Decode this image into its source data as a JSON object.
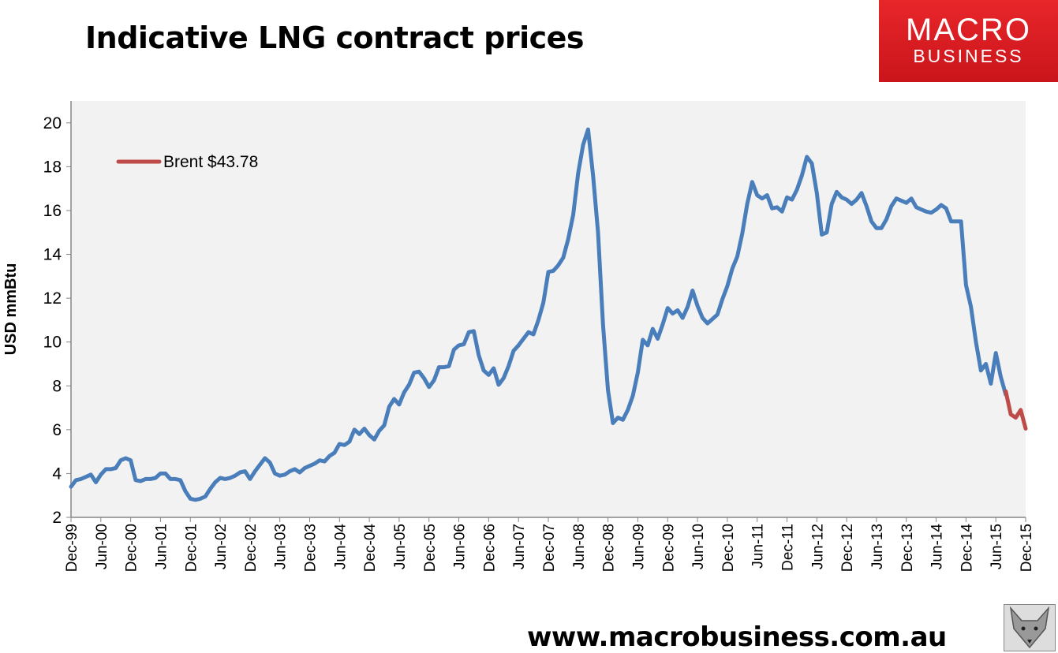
{
  "header": {
    "title": "Indicative LNG contract prices"
  },
  "logo": {
    "line1": "MACRO",
    "line2": "BUSINESS",
    "color": "#e0201f"
  },
  "footer": {
    "url": "www.macrobusiness.com.au"
  },
  "fox_icon": "fox-logo",
  "chart_data": {
    "type": "line",
    "title": "Indicative LNG contract prices",
    "ylabel": "USD mmBtu",
    "xlabel": "",
    "ylim": [
      2,
      21
    ],
    "yticks": [
      2,
      4,
      6,
      8,
      10,
      12,
      14,
      16,
      18,
      20
    ],
    "x_start": "Dec-99",
    "x_step": "1 month",
    "xticks": [
      "Dec-99",
      "Jun-00",
      "Dec-00",
      "Jun-01",
      "Dec-01",
      "Jun-02",
      "Dec-02",
      "Jun-03",
      "Dec-03",
      "Jun-04",
      "Dec-04",
      "Jun-05",
      "Dec-05",
      "Jun-06",
      "Dec-06",
      "Jun-07",
      "Dec-07",
      "Jun-08",
      "Dec-08",
      "Jun-09",
      "Dec-09",
      "Jun-10",
      "Dec-10",
      "Jun-11",
      "Dec-11",
      "Jun-12",
      "Dec-12",
      "Jun-13",
      "Dec-13",
      "Jun-14",
      "Dec-14",
      "Jun-15",
      "Dec-15"
    ],
    "grid": false,
    "legend": {
      "position": "top-left"
    },
    "background": "#f2f2f2",
    "series": [
      {
        "color": "#4a7ebb",
        "start_index": 0,
        "values": [
          3.4,
          3.7,
          3.75,
          3.85,
          3.95,
          3.6,
          3.95,
          4.2,
          4.2,
          4.25,
          4.6,
          4.7,
          4.6,
          3.7,
          3.65,
          3.75,
          3.75,
          3.8,
          4.0,
          4.0,
          3.75,
          3.75,
          3.7,
          3.2,
          2.85,
          2.8,
          2.85,
          2.95,
          3.3,
          3.6,
          3.8,
          3.75,
          3.8,
          3.9,
          4.05,
          4.1,
          3.75,
          4.1,
          4.4,
          4.7,
          4.5,
          4.0,
          3.9,
          3.95,
          4.1,
          4.2,
          4.05,
          4.25,
          4.35,
          4.45,
          4.6,
          4.55,
          4.8,
          4.95,
          5.35,
          5.3,
          5.45,
          6.0,
          5.8,
          6.05,
          5.75,
          5.55,
          5.95,
          6.2,
          7.05,
          7.4,
          7.15,
          7.7,
          8.05,
          8.6,
          8.65,
          8.35,
          7.95,
          8.25,
          8.85,
          8.85,
          8.9,
          9.65,
          9.85,
          9.9,
          10.45,
          10.5,
          9.4,
          8.7,
          8.5,
          8.8,
          8.05,
          8.35,
          8.9,
          9.6,
          9.85,
          10.15,
          10.45,
          10.35,
          11.0,
          11.8,
          13.2,
          13.25,
          13.5,
          13.85,
          14.7,
          15.8,
          17.7,
          19.0,
          19.7,
          17.6,
          15.0,
          10.8,
          7.8,
          6.3,
          6.55,
          6.45,
          6.9,
          7.55,
          8.6,
          10.1,
          9.85,
          10.6,
          10.15,
          10.8,
          11.55,
          11.3,
          11.45,
          11.1,
          11.6,
          12.35,
          11.65,
          11.1,
          10.85,
          11.05,
          11.25,
          11.95,
          12.55,
          13.35,
          13.9,
          14.95,
          16.3,
          17.3,
          16.7,
          16.55,
          16.7,
          16.1,
          16.15,
          15.95,
          16.6,
          16.5,
          16.95,
          17.6,
          18.45,
          18.15,
          16.8,
          14.9,
          15.0,
          16.3,
          16.85,
          16.6,
          16.5,
          16.3,
          16.5,
          16.8,
          16.2,
          15.5,
          15.2,
          15.2,
          15.6,
          16.2,
          16.55,
          16.45,
          16.35,
          16.55,
          16.15,
          16.05,
          15.95,
          15.9,
          16.05,
          16.25,
          16.1,
          15.5,
          15.5,
          15.5,
          12.6,
          11.6,
          10.0,
          8.7,
          9.0,
          8.1,
          9.5,
          8.4,
          7.6
        ]
      },
      {
        "name": "Brent $43.78",
        "color": "#be4b48",
        "start_index": 188,
        "values": [
          7.75,
          6.7,
          6.55,
          6.9,
          6.05
        ]
      }
    ]
  }
}
